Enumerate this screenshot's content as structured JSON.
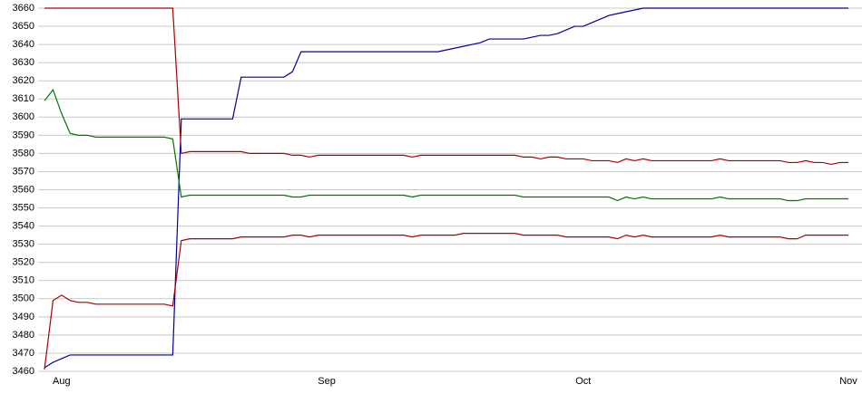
{
  "chart_data": {
    "type": "line",
    "categories": [
      null,
      null,
      "Aug",
      null,
      null,
      null,
      null,
      null,
      null,
      null,
      null,
      null,
      null,
      null,
      null,
      null,
      null,
      null,
      null,
      null,
      null,
      null,
      null,
      null,
      null,
      null,
      null,
      null,
      null,
      null,
      null,
      null,
      null,
      "Sep",
      null,
      null,
      null,
      null,
      null,
      null,
      null,
      null,
      null,
      null,
      null,
      null,
      null,
      null,
      null,
      null,
      null,
      null,
      null,
      null,
      null,
      null,
      null,
      null,
      null,
      null,
      null,
      null,
      null,
      "Oct",
      null,
      null,
      null,
      null,
      null,
      null,
      null,
      null,
      null,
      null,
      null,
      null,
      null,
      null,
      null,
      null,
      null,
      null,
      null,
      null,
      null,
      null,
      null,
      null,
      null,
      null,
      null,
      null,
      null,
      null,
      "Nov"
    ],
    "series": [
      {
        "color": "#000099",
        "values": [
          3462,
          3465,
          3467,
          3469,
          3469,
          3469,
          3469,
          3469,
          3469,
          3469,
          3469,
          3469,
          3469,
          3469,
          3469,
          3469,
          3599,
          3599,
          3599,
          3599,
          3599,
          3599,
          3599,
          3622,
          3622,
          3622,
          3622,
          3622,
          3622,
          3625,
          3636,
          3636,
          3636,
          3636,
          3636,
          3636,
          3636,
          3636,
          3636,
          3636,
          3636,
          3636,
          3636,
          3636,
          3636,
          3636,
          3636,
          3637,
          3638,
          3639,
          3640,
          3641,
          3643,
          3643,
          3643,
          3643,
          3643,
          3644,
          3645,
          3645,
          3646,
          3648,
          3650,
          3650,
          3652,
          3654,
          3656,
          3657,
          3658,
          3659,
          3660,
          3660,
          3660,
          3660,
          3660,
          3660,
          3660,
          3660,
          3660,
          3660,
          3660,
          3660,
          3660,
          3660,
          3660,
          3660,
          3660,
          3660,
          3660,
          3660,
          3660,
          3660,
          3660,
          3660,
          3660
        ]
      },
      {
        "color": "#aa0000",
        "values": [
          3660,
          3660,
          3660,
          3660,
          3660,
          3660,
          3660,
          3660,
          3660,
          3660,
          3660,
          3660,
          3660,
          3660,
          3660,
          3660,
          3580,
          3581,
          3581,
          3581,
          3581,
          3581,
          3581,
          3581,
          3580,
          3580,
          3580,
          3580,
          3580,
          3579,
          3579,
          3578,
          3579,
          3579,
          3579,
          3579,
          3579,
          3579,
          3579,
          3579,
          3579,
          3579,
          3579,
          3578,
          3579,
          3579,
          3579,
          3579,
          3579,
          3579,
          3579,
          3579,
          3579,
          3579,
          3579,
          3579,
          3578,
          3578,
          3577,
          3578,
          3578,
          3577,
          3577,
          3577,
          3576,
          3576,
          3576,
          3575,
          3577,
          3576,
          3577,
          3576,
          3576,
          3576,
          3576,
          3576,
          3576,
          3576,
          3576,
          3577,
          3576,
          3576,
          3576,
          3576,
          3576,
          3576,
          3576,
          3575,
          3575,
          3576,
          3575,
          3575,
          3574,
          3575,
          3575
        ]
      },
      {
        "color": "#007700",
        "values": [
          3609,
          3615,
          3602,
          3591,
          3590,
          3590,
          3589,
          3589,
          3589,
          3589,
          3589,
          3589,
          3589,
          3589,
          3589,
          3588,
          3556,
          3557,
          3557,
          3557,
          3557,
          3557,
          3557,
          3557,
          3557,
          3557,
          3557,
          3557,
          3557,
          3556,
          3556,
          3557,
          3557,
          3557,
          3557,
          3557,
          3557,
          3557,
          3557,
          3557,
          3557,
          3557,
          3557,
          3556,
          3557,
          3557,
          3557,
          3557,
          3557,
          3557,
          3557,
          3557,
          3557,
          3557,
          3557,
          3557,
          3556,
          3556,
          3556,
          3556,
          3556,
          3556,
          3556,
          3556,
          3556,
          3556,
          3556,
          3554,
          3556,
          3555,
          3556,
          3555,
          3555,
          3555,
          3555,
          3555,
          3555,
          3555,
          3555,
          3556,
          3555,
          3555,
          3555,
          3555,
          3555,
          3555,
          3555,
          3554,
          3554,
          3555,
          3555,
          3555,
          3555,
          3555,
          3555
        ]
      },
      {
        "color": "#aa0000",
        "values": [
          3461,
          3499,
          3502,
          3499,
          3498,
          3498,
          3497,
          3497,
          3497,
          3497,
          3497,
          3497,
          3497,
          3497,
          3497,
          3496,
          3532,
          3533,
          3533,
          3533,
          3533,
          3533,
          3533,
          3534,
          3534,
          3534,
          3534,
          3534,
          3534,
          3535,
          3535,
          3534,
          3535,
          3535,
          3535,
          3535,
          3535,
          3535,
          3535,
          3535,
          3535,
          3535,
          3535,
          3534,
          3535,
          3535,
          3535,
          3535,
          3535,
          3536,
          3536,
          3536,
          3536,
          3536,
          3536,
          3536,
          3535,
          3535,
          3535,
          3535,
          3535,
          3534,
          3534,
          3534,
          3534,
          3534,
          3534,
          3533,
          3535,
          3534,
          3535,
          3534,
          3534,
          3534,
          3534,
          3534,
          3534,
          3534,
          3534,
          3535,
          3534,
          3534,
          3534,
          3534,
          3534,
          3534,
          3534,
          3533,
          3533,
          3535,
          3535,
          3535,
          3535,
          3535,
          3535
        ]
      }
    ],
    "ylim": [
      3460,
      3660
    ],
    "yticks": [
      3460,
      3470,
      3480,
      3490,
      3500,
      3510,
      3520,
      3530,
      3540,
      3550,
      3560,
      3570,
      3580,
      3590,
      3600,
      3610,
      3620,
      3630,
      3640,
      3650,
      3660
    ],
    "grid": true
  }
}
